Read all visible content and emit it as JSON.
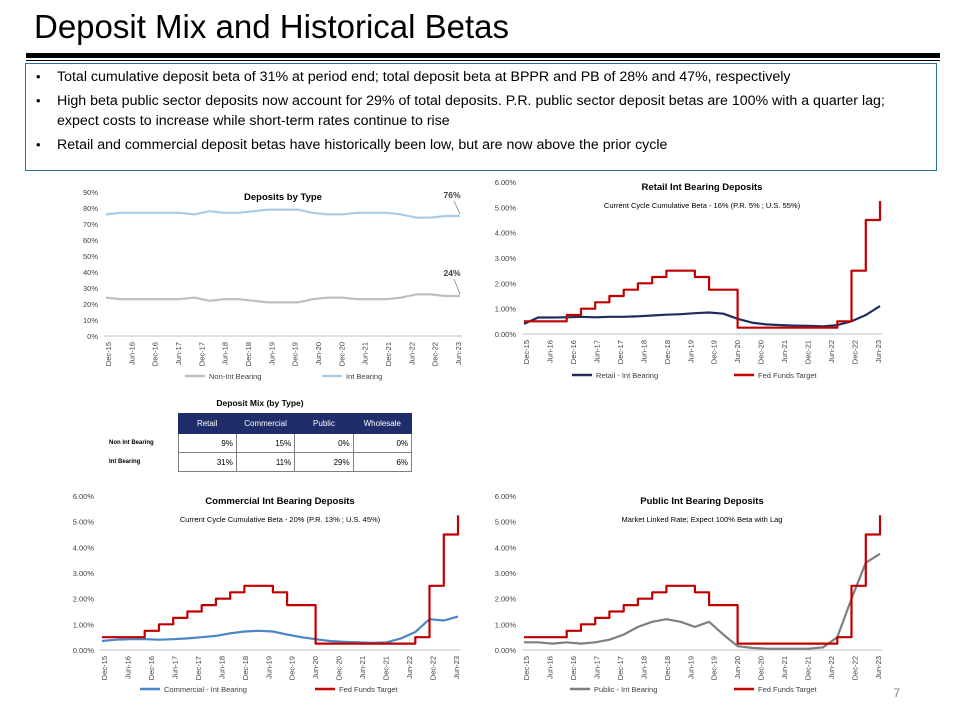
{
  "title": "Deposit Mix and Historical Betas",
  "bullets": [
    "Total cumulative deposit beta of 31% at period end; total deposit beta at BPPR and PB of 28% and 47%, respectively",
    "High beta public sector deposits now account for 29% of total deposits. P.R. public sector deposit betas are 100% with a quarter lag; expect costs to increase while short-term rates continue to rise",
    "Retail and commercial deposit betas have historically been low, but are now above the prior cycle"
  ],
  "page_number": "7",
  "colors": {
    "fed": "#c00000",
    "retail": "#1f2d5c",
    "commercial": "#4a86c5",
    "public": "#7f7f7f",
    "nonint": "#bfbfbf",
    "intbearing": "#a9cce6",
    "header": "#1f2d6b",
    "border": "#2f6f9f"
  },
  "deposit_mix": {
    "title": "Deposit Mix (by Type)",
    "columns": [
      "Retail",
      "Commercial",
      "Public",
      "Wholesale"
    ],
    "rows": [
      {
        "label": "Non Int Bearing",
        "values": [
          "9%",
          "15%",
          "0%",
          "0%"
        ]
      },
      {
        "label": "Int Bearing",
        "values": [
          "31%",
          "11%",
          "29%",
          "6%"
        ]
      }
    ]
  },
  "chart_data": [
    {
      "id": "deposits",
      "type": "line",
      "title": "Deposits by Type",
      "subtitle": "",
      "x_ticks": [
        "Dec-15",
        "Jun-16",
        "Dec-16",
        "Jun-17",
        "Dec-17",
        "Jun-18",
        "Dec-18",
        "Jun-19",
        "Dec-19",
        "Jun-20",
        "Dec-20",
        "Jun-21",
        "Dec-21",
        "Jun-22",
        "Dec-22",
        "Jun-23"
      ],
      "y_ticks": [
        "0%",
        "10%",
        "20%",
        "30%",
        "40%",
        "50%",
        "60%",
        "70%",
        "80%",
        "90%"
      ],
      "ylim": [
        0,
        90
      ],
      "annotations": [
        {
          "text": "76%",
          "series": 1
        },
        {
          "text": "24%",
          "series": 0
        }
      ],
      "series": [
        {
          "name": "Non-Int Bearing",
          "color": "#bfbfbf",
          "values": [
            24,
            23,
            23,
            23,
            23,
            23,
            24,
            22,
            23,
            23,
            22,
            21,
            21,
            21,
            23,
            24,
            24,
            23,
            23,
            23,
            24,
            26,
            26,
            25,
            25
          ]
        },
        {
          "name": "Int Bearing",
          "color": "#a9cce6",
          "values": [
            76,
            77,
            77,
            77,
            77,
            77,
            76,
            78,
            77,
            77,
            78,
            79,
            79,
            79,
            77,
            76,
            76,
            77,
            77,
            77,
            76,
            74,
            74,
            75,
            75
          ]
        }
      ]
    },
    {
      "id": "retail",
      "type": "line",
      "title": "Retail Int Bearing Deposits",
      "subtitle": "Current Cycle Cumulative Beta - 16% (P.R. 5% ; U.S. 55%)",
      "x_ticks": [
        "Dec-15",
        "Jun-16",
        "Dec-16",
        "Jun-17",
        "Dec-17",
        "Jun-18",
        "Dec-18",
        "Jun-19",
        "Dec-19",
        "Jun-20",
        "Dec-20",
        "Jun-21",
        "Dec-21",
        "Jun-22",
        "Dec-22",
        "Jun-23"
      ],
      "y_ticks": [
        "0.00%",
        "1.00%",
        "2.00%",
        "3.00%",
        "4.00%",
        "5.00%",
        "6.00%"
      ],
      "ylim": [
        0,
        6
      ],
      "series": [
        {
          "name": "Retail - Int Bearing",
          "color": "#1f2d5c",
          "values": [
            0.4,
            0.65,
            0.65,
            0.66,
            0.68,
            0.66,
            0.68,
            0.68,
            0.7,
            0.73,
            0.76,
            0.78,
            0.82,
            0.85,
            0.8,
            0.6,
            0.45,
            0.38,
            0.35,
            0.33,
            0.32,
            0.3,
            0.35,
            0.5,
            0.75,
            1.1
          ]
        },
        {
          "name": "Fed Funds Target",
          "color": "#c00000",
          "values": [
            0.5,
            0.5,
            0.5,
            0.75,
            1.0,
            1.25,
            1.5,
            1.75,
            2.0,
            2.25,
            2.5,
            2.5,
            2.25,
            1.75,
            1.75,
            0.25,
            0.25,
            0.25,
            0.25,
            0.25,
            0.25,
            0.25,
            0.5,
            2.5,
            4.5,
            5.25
          ]
        }
      ]
    },
    {
      "id": "commercial",
      "type": "line",
      "title": "Commercial Int Bearing Deposits",
      "subtitle": "Current Cycle Cumulative Beta - 20% (P.R. 13% ; U.S. 45%)",
      "x_ticks": [
        "Dec-15",
        "Jun-16",
        "Dec-16",
        "Jun-17",
        "Dec-17",
        "Jun-18",
        "Dec-18",
        "Jun-19",
        "Dec-19",
        "Jun-20",
        "Dec-20",
        "Jun-21",
        "Dec-21",
        "Jun-22",
        "Dec-22",
        "Jun-23"
      ],
      "y_ticks": [
        "0.00%",
        "1.00%",
        "2.00%",
        "3.00%",
        "4.00%",
        "5.00%",
        "6.00%"
      ],
      "ylim": [
        0,
        6
      ],
      "series": [
        {
          "name": "Commercial - Int Bearing",
          "color": "#4a86c5",
          "values": [
            0.35,
            0.4,
            0.42,
            0.42,
            0.4,
            0.42,
            0.45,
            0.5,
            0.55,
            0.65,
            0.72,
            0.75,
            0.72,
            0.6,
            0.5,
            0.42,
            0.35,
            0.32,
            0.3,
            0.28,
            0.3,
            0.45,
            0.7,
            1.2,
            1.15,
            1.3
          ]
        },
        {
          "name": "Fed Funds Target",
          "color": "#c00000",
          "values": [
            0.5,
            0.5,
            0.5,
            0.75,
            1.0,
            1.25,
            1.5,
            1.75,
            2.0,
            2.25,
            2.5,
            2.5,
            2.25,
            1.75,
            1.75,
            0.25,
            0.25,
            0.25,
            0.25,
            0.25,
            0.25,
            0.25,
            0.5,
            2.5,
            4.5,
            5.25
          ]
        }
      ]
    },
    {
      "id": "public",
      "type": "line",
      "title": "Public Int Bearing Deposits",
      "subtitle": "Market Linked Rate; Expect 100% Beta with Lag",
      "x_ticks": [
        "Dec-15",
        "Jun-16",
        "Dec-16",
        "Jun-17",
        "Dec-17",
        "Jun-18",
        "Dec-18",
        "Jun-19",
        "Dec-19",
        "Jun-20",
        "Dec-20",
        "Jun-21",
        "Dec-21",
        "Jun-22",
        "Dec-22",
        "Jun-23"
      ],
      "y_ticks": [
        "0.00%",
        "1.00%",
        "2.00%",
        "3.00%",
        "4.00%",
        "5.00%",
        "6.00%"
      ],
      "ylim": [
        0,
        6
      ],
      "series": [
        {
          "name": "Public - Int Bearing",
          "color": "#7f7f7f",
          "values": [
            0.3,
            0.3,
            0.25,
            0.3,
            0.25,
            0.3,
            0.4,
            0.6,
            0.9,
            1.1,
            1.2,
            1.1,
            0.9,
            1.1,
            0.6,
            0.15,
            0.08,
            0.05,
            0.05,
            0.05,
            0.05,
            0.1,
            0.5,
            2.0,
            3.4,
            3.75
          ]
        },
        {
          "name": "Fed Funds Target",
          "color": "#c00000",
          "values": [
            0.5,
            0.5,
            0.5,
            0.75,
            1.0,
            1.25,
            1.5,
            1.75,
            2.0,
            2.25,
            2.5,
            2.5,
            2.25,
            1.75,
            1.75,
            0.25,
            0.25,
            0.25,
            0.25,
            0.25,
            0.25,
            0.25,
            0.5,
            2.5,
            4.5,
            5.25
          ]
        }
      ]
    }
  ]
}
